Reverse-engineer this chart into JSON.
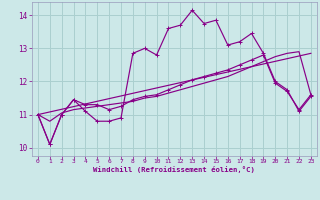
{
  "background_color": "#cce8e8",
  "grid_color": "#aacfcf",
  "line_color": "#880088",
  "xlabel": "Windchill (Refroidissement éolien,°C)",
  "xlim": [
    -0.5,
    23.5
  ],
  "ylim": [
    9.75,
    14.4
  ],
  "yticks": [
    10,
    11,
    12,
    13,
    14
  ],
  "xticks": [
    0,
    1,
    2,
    3,
    4,
    5,
    6,
    7,
    8,
    9,
    10,
    11,
    12,
    13,
    14,
    15,
    16,
    17,
    18,
    19,
    20,
    21,
    22,
    23
  ],
  "series_jagged_x": [
    0,
    1,
    2,
    3,
    4,
    5,
    6,
    7,
    8,
    9,
    10,
    11,
    12,
    13,
    14,
    15,
    16,
    17,
    18,
    19,
    20,
    21,
    22,
    23
  ],
  "series_jagged_y": [
    11.0,
    10.1,
    11.0,
    11.45,
    11.1,
    10.8,
    10.8,
    10.9,
    12.85,
    13.0,
    12.8,
    13.6,
    13.7,
    14.15,
    13.75,
    13.85,
    13.1,
    13.2,
    13.45,
    12.85,
    12.0,
    11.75,
    11.1,
    11.55
  ],
  "series_smooth_x": [
    0,
    1,
    2,
    3,
    4,
    5,
    6,
    7,
    8,
    9,
    10,
    11,
    12,
    13,
    14,
    15,
    16,
    17,
    18,
    19,
    20,
    21,
    22,
    23
  ],
  "series_smooth_y": [
    11.0,
    10.1,
    11.0,
    11.45,
    11.3,
    11.3,
    11.15,
    11.25,
    11.45,
    11.55,
    11.6,
    11.75,
    11.9,
    12.05,
    12.15,
    12.25,
    12.35,
    12.5,
    12.65,
    12.8,
    11.95,
    11.7,
    11.15,
    11.6
  ],
  "series_reg_x": [
    0,
    1,
    2,
    3,
    4,
    5,
    6,
    7,
    8,
    9,
    10,
    11,
    12,
    13,
    14,
    15,
    16,
    17,
    18,
    19,
    20,
    21,
    22,
    23
  ],
  "series_reg_y": [
    11.0,
    10.8,
    11.05,
    11.15,
    11.2,
    11.25,
    11.3,
    11.35,
    11.4,
    11.5,
    11.55,
    11.65,
    11.75,
    11.85,
    11.95,
    12.05,
    12.15,
    12.3,
    12.45,
    12.6,
    12.75,
    12.85,
    12.9,
    11.6
  ],
  "series_trend_x": [
    0,
    23
  ],
  "series_trend_y": [
    11.0,
    12.85
  ]
}
